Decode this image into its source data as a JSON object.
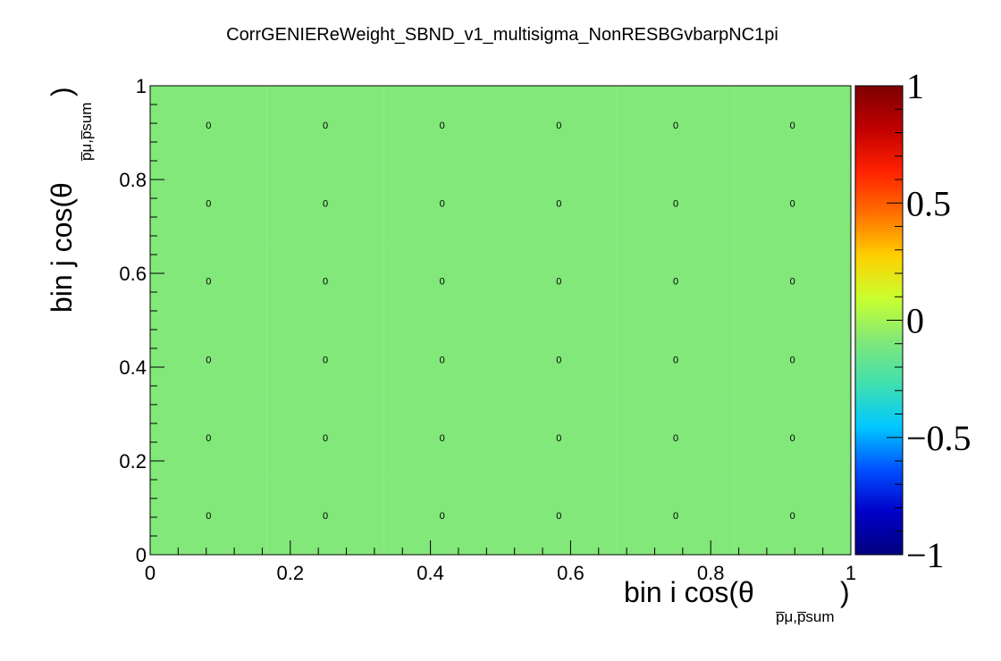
{
  "title": "CorrGENIEReWeight_SBND_v1_multisigma_NonRESBGvbarpNC1pi",
  "chart_data": {
    "type": "heatmap",
    "title": "CorrGENIEReWeight_SBND_v1_multisigma_NonRESBGvbarpNC1pi",
    "xlabel": {
      "text": "bin i cos(θ",
      "subscript": "p̅μ,p̅sum",
      "close": ")"
    },
    "ylabel": {
      "text": "bin j cos(θ",
      "subscript": "p̅μ,p̅sum",
      "close": ")"
    },
    "xlim": [
      0,
      1
    ],
    "ylim": [
      0,
      1
    ],
    "zlim": [
      -1,
      1
    ],
    "x_ticks": [
      0,
      0.2,
      0.4,
      0.6,
      0.8,
      1
    ],
    "x_tick_labels": [
      "0",
      "0.2",
      "0.4",
      "0.6",
      "0.8",
      "1"
    ],
    "y_ticks": [
      0,
      0.2,
      0.4,
      0.6,
      0.8,
      1
    ],
    "y_tick_labels": [
      "0",
      "0.2",
      "0.4",
      "0.6",
      "0.8",
      "1"
    ],
    "z_ticks": [
      1,
      0.5,
      0,
      -0.5,
      -1
    ],
    "z_tick_labels": [
      "1",
      "0.5",
      "0",
      "−0.5",
      "−1"
    ],
    "x_bin_edges": [
      0,
      0.1667,
      0.3333,
      0.5,
      0.6667,
      0.8333,
      1
    ],
    "y_bin_edges": [
      0,
      0.1667,
      0.3333,
      0.5,
      0.6667,
      0.8333,
      1
    ],
    "values": [
      [
        0,
        0,
        0,
        0,
        0,
        0
      ],
      [
        0,
        0,
        0,
        0,
        0,
        0
      ],
      [
        0,
        0,
        0,
        0,
        0,
        0
      ],
      [
        0,
        0,
        0,
        0,
        0,
        0
      ],
      [
        0,
        0,
        0,
        0,
        0,
        0
      ],
      [
        0,
        0,
        0,
        0,
        0,
        0
      ]
    ],
    "cell_text": [
      [
        "0",
        "0",
        "0",
        "0",
        "0",
        "0"
      ],
      [
        "0",
        "0",
        "0",
        "0",
        "0",
        "0"
      ],
      [
        "0",
        "0",
        "0",
        "0",
        "0",
        "0"
      ],
      [
        "0",
        "0",
        "0",
        "0",
        "0",
        "0"
      ],
      [
        "0",
        "0",
        "0",
        "0",
        "0",
        "0"
      ],
      [
        "0",
        "0",
        "0",
        "0",
        "0",
        "0"
      ]
    ],
    "colormap": [
      "#00007d",
      "#0000c8",
      "#0050ff",
      "#00c8ff",
      "#40e0b0",
      "#80e878",
      "#c8ff30",
      "#ffd000",
      "#ff7000",
      "#ff2000",
      "#c00000",
      "#7d0000"
    ],
    "zero_color": "#82e87a",
    "colorbar": true
  }
}
